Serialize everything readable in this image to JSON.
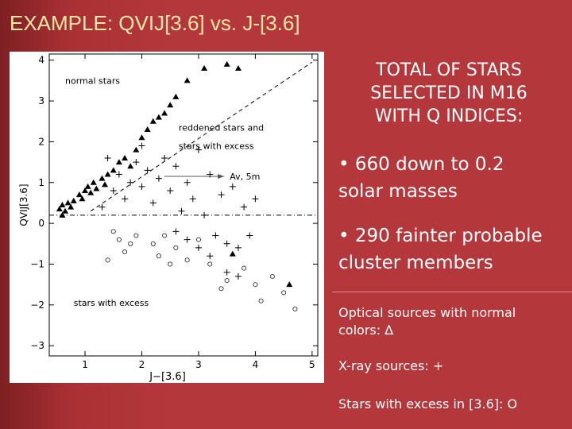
{
  "slide": {
    "title": "EXAMPLE: QVIJ[3.6] vs. J-[3.6]",
    "heading": [
      "TOTAL OF STARS",
      "SELECTED IN M16",
      "WITH Q INDICES:"
    ],
    "bullets": [
      [
        "660 down to 0.2",
        "solar masses"
      ],
      [
        "290 fainter probable",
        "cluster members"
      ]
    ]
  },
  "chart_data": {
    "type": "scatter",
    "xlabel": "J−[3.6]",
    "ylabel": "QVIJ[3.6]",
    "xlim": [
      0.37,
      5.1
    ],
    "ylim": [
      -3.25,
      4.15
    ],
    "xticks": [
      1,
      2,
      3,
      4,
      5
    ],
    "yticks": [
      {
        "value": -3,
        "label": "−3"
      },
      {
        "value": -2,
        "label": "−2"
      },
      {
        "value": -1,
        "label": "−1"
      },
      0,
      1,
      2,
      3,
      4
    ],
    "annotations": [
      "normal stars",
      "reddened stars and",
      "stars with excess",
      "stars with excess",
      "Av, 5m"
    ],
    "series": [
      {
        "name": "Optical sources with normal colors: ∆",
        "marker": "triangle",
        "color": "#000000",
        "x": [
          0.55,
          0.6,
          0.65,
          0.7,
          0.75,
          0.8,
          0.9,
          0.95,
          1.0,
          1.05,
          1.1,
          1.15,
          1.2,
          1.3,
          1.4,
          1.5,
          1.6,
          1.7,
          1.9,
          2.0,
          2.1,
          2.3,
          2.5,
          2.6,
          2.8,
          3.1,
          3.5,
          3.7,
          2.2,
          2.4,
          3.6,
          4.6,
          1.8,
          1.35,
          0.6
        ],
        "values": [
          0.35,
          0.45,
          0.3,
          0.5,
          0.4,
          0.55,
          0.7,
          0.6,
          0.8,
          0.9,
          0.75,
          1.0,
          0.85,
          1.1,
          1.2,
          1.3,
          1.5,
          1.6,
          1.8,
          2.1,
          2.3,
          2.6,
          2.9,
          3.1,
          3.5,
          3.8,
          3.9,
          3.8,
          2.5,
          2.7,
          -0.75,
          -1.5,
          1.4,
          0.95,
          0.2
        ]
      },
      {
        "name": "X-ray sources: +",
        "marker": "cross",
        "color": "#000000",
        "x": [
          1.5,
          1.6,
          1.7,
          1.8,
          1.9,
          2.0,
          2.1,
          2.2,
          2.3,
          2.4,
          2.5,
          2.6,
          2.7,
          2.8,
          2.9,
          3.0,
          3.1,
          3.2,
          3.3,
          3.4,
          3.5,
          3.6,
          3.7,
          3.8,
          3.9,
          4.0,
          2.6,
          2.8,
          3.0,
          3.2,
          3.5,
          3.7,
          1.3,
          1.4,
          2.0
        ],
        "values": [
          0.8,
          1.2,
          0.6,
          1.0,
          1.5,
          0.9,
          1.3,
          0.5,
          1.1,
          1.6,
          0.8,
          1.4,
          0.3,
          1.0,
          0.6,
          1.8,
          0.2,
          1.2,
          -0.3,
          0.7,
          -0.5,
          0.9,
          -0.6,
          0.4,
          -0.3,
          0.6,
          -0.2,
          -0.4,
          -0.6,
          -0.8,
          -1.2,
          -1.3,
          0.4,
          1.6,
          1.9
        ]
      },
      {
        "name": "Stars with excess in [3.6]: O",
        "marker": "circle",
        "color": "#333333",
        "x": [
          1.5,
          1.6,
          1.8,
          1.7,
          1.9,
          2.2,
          2.3,
          2.4,
          2.6,
          2.8,
          3.0,
          3.2,
          3.5,
          3.8,
          4.0,
          4.1,
          4.5,
          4.7,
          3.4,
          2.5,
          4.3,
          1.4
        ],
        "values": [
          -0.2,
          -0.4,
          -0.5,
          -0.7,
          -0.3,
          -0.5,
          -0.8,
          -0.3,
          -0.6,
          -0.9,
          -0.4,
          -1.0,
          -1.4,
          -1.1,
          -1.5,
          -1.9,
          -1.7,
          -2.1,
          -1.6,
          -1.0,
          -1.3,
          -0.9
        ]
      }
    ]
  }
}
